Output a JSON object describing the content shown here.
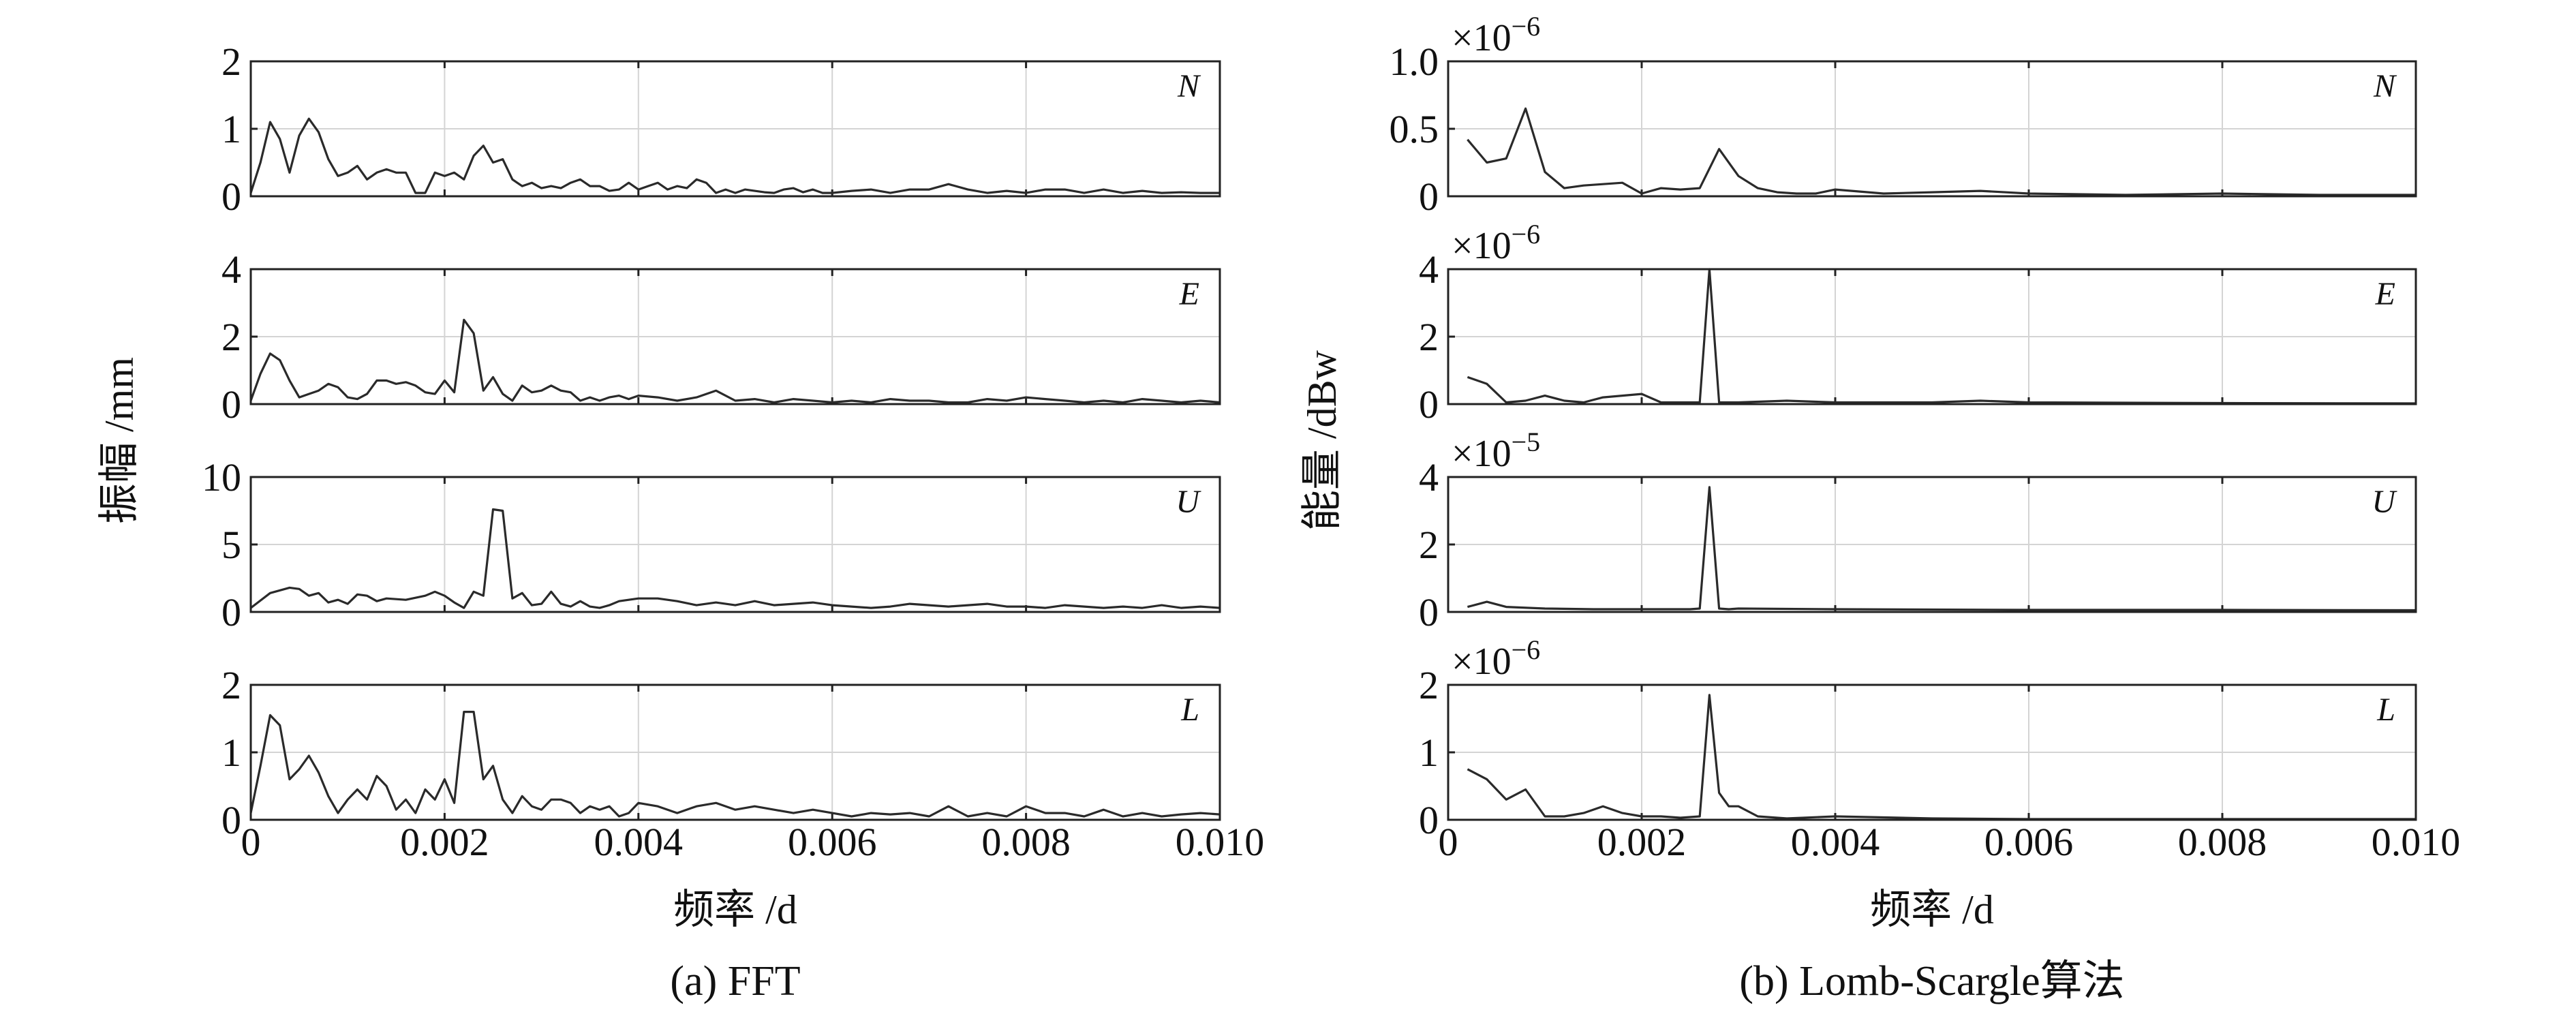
{
  "figure": {
    "captions": [
      "(a) FFT",
      "(b) Lomb-Scargle算法"
    ]
  },
  "chart_data": [
    {
      "type": "line",
      "caption": "(a) FFT",
      "xlabel": "频率 /d",
      "ylabel": "振幅 /mm",
      "xlim": [
        0,
        0.01
      ],
      "xticks": [
        "0",
        "0.002",
        "0.004",
        "0.006",
        "0.008",
        "0.010"
      ],
      "grid": true,
      "panels": [
        {
          "label": "N",
          "ylim": [
            0,
            2
          ],
          "yticks": [
            "0",
            "1",
            "2"
          ],
          "sci": "",
          "x": [
            0.0,
            0.0001,
            0.0002,
            0.0003,
            0.0004,
            0.0005,
            0.0006,
            0.0007,
            0.0008,
            0.0009,
            0.001,
            0.0011,
            0.0012,
            0.0013,
            0.0014,
            0.0015,
            0.0016,
            0.0017,
            0.0018,
            0.0019,
            0.002,
            0.0021,
            0.0022,
            0.0023,
            0.0024,
            0.0025,
            0.0026,
            0.0027,
            0.0028,
            0.0029,
            0.003,
            0.0031,
            0.0032,
            0.0033,
            0.0034,
            0.0035,
            0.0036,
            0.0037,
            0.0038,
            0.0039,
            0.004,
            0.0041,
            0.0042,
            0.0043,
            0.0044,
            0.0045,
            0.0046,
            0.0047,
            0.0048,
            0.0049,
            0.005,
            0.0051,
            0.0052,
            0.0053,
            0.0054,
            0.0055,
            0.0056,
            0.0057,
            0.0058,
            0.0059,
            0.006,
            0.0062,
            0.0064,
            0.0066,
            0.0068,
            0.007,
            0.0072,
            0.0074,
            0.0076,
            0.0078,
            0.008,
            0.0082,
            0.0084,
            0.0086,
            0.0088,
            0.009,
            0.0092,
            0.0094,
            0.0096,
            0.0098,
            0.01
          ],
          "y": [
            0.05,
            0.5,
            1.1,
            0.85,
            0.35,
            0.9,
            1.15,
            0.95,
            0.55,
            0.3,
            0.35,
            0.45,
            0.25,
            0.35,
            0.4,
            0.35,
            0.35,
            0.05,
            0.05,
            0.35,
            0.3,
            0.35,
            0.25,
            0.6,
            0.75,
            0.5,
            0.55,
            0.25,
            0.15,
            0.2,
            0.12,
            0.15,
            0.12,
            0.2,
            0.25,
            0.15,
            0.15,
            0.08,
            0.1,
            0.2,
            0.1,
            0.15,
            0.2,
            0.1,
            0.15,
            0.12,
            0.25,
            0.2,
            0.05,
            0.1,
            0.05,
            0.1,
            0.08,
            0.06,
            0.05,
            0.1,
            0.12,
            0.06,
            0.1,
            0.05,
            0.05,
            0.08,
            0.1,
            0.05,
            0.1,
            0.1,
            0.18,
            0.1,
            0.05,
            0.08,
            0.05,
            0.1,
            0.1,
            0.05,
            0.1,
            0.05,
            0.08,
            0.05,
            0.06,
            0.05,
            0.05
          ]
        },
        {
          "label": "E",
          "ylim": [
            0,
            4
          ],
          "yticks": [
            "0",
            "2",
            "4"
          ],
          "sci": "",
          "x": [
            0.0,
            0.0001,
            0.0002,
            0.0003,
            0.0004,
            0.0005,
            0.0006,
            0.0007,
            0.0008,
            0.0009,
            0.001,
            0.0011,
            0.0012,
            0.0013,
            0.0014,
            0.0015,
            0.0016,
            0.0017,
            0.0018,
            0.0019,
            0.002,
            0.0021,
            0.0022,
            0.0023,
            0.0024,
            0.0025,
            0.0026,
            0.0027,
            0.0028,
            0.0029,
            0.003,
            0.0031,
            0.0032,
            0.0033,
            0.0034,
            0.0035,
            0.0036,
            0.0037,
            0.0038,
            0.0039,
            0.004,
            0.0042,
            0.0044,
            0.0046,
            0.0048,
            0.005,
            0.0052,
            0.0054,
            0.0056,
            0.0058,
            0.006,
            0.0062,
            0.0064,
            0.0066,
            0.0068,
            0.007,
            0.0072,
            0.0074,
            0.0076,
            0.0078,
            0.008,
            0.0082,
            0.0084,
            0.0086,
            0.0088,
            0.009,
            0.0092,
            0.0094,
            0.0096,
            0.0098,
            0.01
          ],
          "y": [
            0.1,
            0.9,
            1.5,
            1.3,
            0.7,
            0.2,
            0.3,
            0.4,
            0.6,
            0.5,
            0.2,
            0.15,
            0.3,
            0.7,
            0.7,
            0.6,
            0.65,
            0.55,
            0.35,
            0.3,
            0.7,
            0.35,
            2.5,
            2.1,
            0.4,
            0.8,
            0.3,
            0.1,
            0.55,
            0.35,
            0.4,
            0.55,
            0.4,
            0.35,
            0.1,
            0.2,
            0.1,
            0.2,
            0.25,
            0.15,
            0.25,
            0.2,
            0.1,
            0.2,
            0.4,
            0.1,
            0.15,
            0.05,
            0.15,
            0.1,
            0.05,
            0.1,
            0.05,
            0.15,
            0.1,
            0.1,
            0.05,
            0.05,
            0.15,
            0.1,
            0.2,
            0.15,
            0.1,
            0.05,
            0.1,
            0.05,
            0.15,
            0.1,
            0.05,
            0.1,
            0.05
          ]
        },
        {
          "label": "U",
          "ylim": [
            0,
            10
          ],
          "yticks": [
            "0",
            "5",
            "10"
          ],
          "sci": "",
          "x": [
            0.0,
            0.0002,
            0.0004,
            0.0005,
            0.0006,
            0.0007,
            0.0008,
            0.0009,
            0.001,
            0.0011,
            0.0012,
            0.0013,
            0.0014,
            0.0016,
            0.0018,
            0.0019,
            0.002,
            0.0021,
            0.0022,
            0.0023,
            0.0024,
            0.0025,
            0.0026,
            0.0027,
            0.0028,
            0.0029,
            0.003,
            0.0031,
            0.0032,
            0.0033,
            0.0034,
            0.0035,
            0.0036,
            0.0037,
            0.0038,
            0.004,
            0.0042,
            0.0044,
            0.0046,
            0.0048,
            0.005,
            0.0052,
            0.0054,
            0.0056,
            0.0058,
            0.006,
            0.0062,
            0.0064,
            0.0066,
            0.0068,
            0.007,
            0.0072,
            0.0074,
            0.0076,
            0.0078,
            0.008,
            0.0082,
            0.0084,
            0.0086,
            0.0088,
            0.009,
            0.0092,
            0.0094,
            0.0096,
            0.0098,
            0.01
          ],
          "y": [
            0.3,
            1.4,
            1.8,
            1.7,
            1.2,
            1.4,
            0.7,
            0.9,
            0.6,
            1.3,
            1.2,
            0.8,
            1.0,
            0.9,
            1.2,
            1.5,
            1.2,
            0.7,
            0.3,
            1.5,
            1.2,
            7.6,
            7.5,
            1.0,
            1.4,
            0.5,
            0.6,
            1.5,
            0.6,
            0.4,
            0.8,
            0.4,
            0.3,
            0.5,
            0.8,
            1.0,
            1.0,
            0.8,
            0.5,
            0.7,
            0.5,
            0.8,
            0.5,
            0.6,
            0.7,
            0.5,
            0.4,
            0.3,
            0.4,
            0.6,
            0.5,
            0.4,
            0.5,
            0.6,
            0.4,
            0.4,
            0.3,
            0.5,
            0.4,
            0.3,
            0.4,
            0.3,
            0.5,
            0.3,
            0.4,
            0.3
          ]
        },
        {
          "label": "L",
          "ylim": [
            0,
            2
          ],
          "yticks": [
            "0",
            "1",
            "2"
          ],
          "sci": "",
          "x": [
            0.0,
            0.0001,
            0.0002,
            0.0003,
            0.0004,
            0.0005,
            0.0006,
            0.0007,
            0.0008,
            0.0009,
            0.001,
            0.0011,
            0.0012,
            0.0013,
            0.0014,
            0.0015,
            0.0016,
            0.0017,
            0.0018,
            0.0019,
            0.002,
            0.0021,
            0.0022,
            0.0023,
            0.0024,
            0.0025,
            0.0026,
            0.0027,
            0.0028,
            0.0029,
            0.003,
            0.0031,
            0.0032,
            0.0033,
            0.0034,
            0.0035,
            0.0036,
            0.0037,
            0.0038,
            0.0039,
            0.004,
            0.0042,
            0.0044,
            0.0046,
            0.0048,
            0.005,
            0.0052,
            0.0054,
            0.0056,
            0.0058,
            0.006,
            0.0062,
            0.0064,
            0.0066,
            0.0068,
            0.007,
            0.0072,
            0.0074,
            0.0076,
            0.0078,
            0.008,
            0.0082,
            0.0084,
            0.0086,
            0.0088,
            0.009,
            0.0092,
            0.0094,
            0.0096,
            0.0098,
            0.01
          ],
          "y": [
            0.1,
            0.8,
            1.55,
            1.4,
            0.6,
            0.75,
            0.95,
            0.7,
            0.35,
            0.1,
            0.3,
            0.45,
            0.3,
            0.65,
            0.5,
            0.15,
            0.3,
            0.1,
            0.45,
            0.3,
            0.6,
            0.25,
            1.6,
            1.6,
            0.6,
            0.8,
            0.3,
            0.1,
            0.35,
            0.2,
            0.15,
            0.3,
            0.3,
            0.25,
            0.1,
            0.2,
            0.15,
            0.2,
            0.05,
            0.1,
            0.25,
            0.2,
            0.1,
            0.2,
            0.25,
            0.15,
            0.2,
            0.15,
            0.1,
            0.15,
            0.1,
            0.05,
            0.1,
            0.08,
            0.1,
            0.05,
            0.2,
            0.05,
            0.1,
            0.05,
            0.2,
            0.1,
            0.1,
            0.05,
            0.15,
            0.05,
            0.1,
            0.05,
            0.08,
            0.1,
            0.08
          ]
        }
      ]
    },
    {
      "type": "line",
      "caption": "(b) Lomb-Scargle算法",
      "xlabel": "频率 /d",
      "ylabel": "能量 /dBw",
      "xlim": [
        0,
        0.01
      ],
      "xticks": [
        "0",
        "0.002",
        "0.004",
        "0.006",
        "0.008",
        "0.010"
      ],
      "grid": true,
      "panels": [
        {
          "label": "N",
          "ylim": [
            0,
            1.0
          ],
          "yticks": [
            "0",
            "0.5",
            "1.0"
          ],
          "sci": "×10",
          "sci_exp": "−6",
          "x": [
            0.0002,
            0.0004,
            0.0006,
            0.0008,
            0.001,
            0.0012,
            0.0014,
            0.0016,
            0.0018,
            0.002,
            0.0022,
            0.0024,
            0.0026,
            0.0028,
            0.003,
            0.0032,
            0.0034,
            0.0036,
            0.0038,
            0.004,
            0.0045,
            0.005,
            0.0055,
            0.006,
            0.007,
            0.008,
            0.009,
            0.01
          ],
          "y": [
            0.42,
            0.25,
            0.28,
            0.65,
            0.18,
            0.06,
            0.08,
            0.09,
            0.1,
            0.02,
            0.06,
            0.05,
            0.06,
            0.35,
            0.15,
            0.06,
            0.03,
            0.02,
            0.02,
            0.05,
            0.02,
            0.03,
            0.04,
            0.02,
            0.01,
            0.02,
            0.01,
            0.01
          ]
        },
        {
          "label": "E",
          "ylim": [
            0,
            4
          ],
          "yticks": [
            "0",
            "2",
            "4"
          ],
          "sci": "×10",
          "sci_exp": "−6",
          "x": [
            0.0002,
            0.0004,
            0.0006,
            0.0008,
            0.001,
            0.0012,
            0.0014,
            0.0016,
            0.0018,
            0.002,
            0.0022,
            0.0024,
            0.0026,
            0.0027,
            0.0028,
            0.003,
            0.0035,
            0.004,
            0.005,
            0.0055,
            0.006,
            0.008,
            0.01
          ],
          "y": [
            0.8,
            0.6,
            0.05,
            0.1,
            0.25,
            0.1,
            0.05,
            0.2,
            0.25,
            0.3,
            0.05,
            0.05,
            0.05,
            4.0,
            0.05,
            0.05,
            0.1,
            0.05,
            0.05,
            0.1,
            0.05,
            0.03,
            0.02
          ]
        },
        {
          "label": "U",
          "ylim": [
            0,
            4
          ],
          "yticks": [
            "0",
            "2",
            "4"
          ],
          "sci": "×10",
          "sci_exp": "−5",
          "x": [
            0.0002,
            0.0004,
            0.0006,
            0.001,
            0.0015,
            0.002,
            0.0025,
            0.0026,
            0.0027,
            0.0028,
            0.0029,
            0.003,
            0.004,
            0.006,
            0.008,
            0.01
          ],
          "y": [
            0.15,
            0.3,
            0.15,
            0.1,
            0.08,
            0.08,
            0.08,
            0.1,
            3.7,
            0.1,
            0.08,
            0.1,
            0.08,
            0.06,
            0.06,
            0.05
          ]
        },
        {
          "label": "L",
          "ylim": [
            0,
            2
          ],
          "yticks": [
            "0",
            "1",
            "2"
          ],
          "sci": "×10",
          "sci_exp": "−6",
          "x": [
            0.0002,
            0.0004,
            0.0006,
            0.0008,
            0.001,
            0.0012,
            0.0014,
            0.0016,
            0.0018,
            0.002,
            0.0022,
            0.0024,
            0.0026,
            0.0027,
            0.0028,
            0.0029,
            0.003,
            0.0032,
            0.0035,
            0.004,
            0.005,
            0.006,
            0.008,
            0.01
          ],
          "y": [
            0.75,
            0.6,
            0.3,
            0.45,
            0.05,
            0.05,
            0.1,
            0.2,
            0.1,
            0.05,
            0.05,
            0.03,
            0.05,
            1.85,
            0.4,
            0.2,
            0.2,
            0.05,
            0.02,
            0.05,
            0.02,
            0.01,
            0.01,
            0.01
          ]
        }
      ]
    }
  ]
}
